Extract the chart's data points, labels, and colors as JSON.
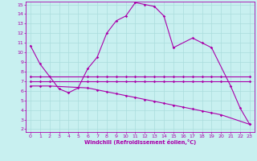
{
  "background_color": "#c8f0f0",
  "grid_color": "#aadddd",
  "line_color": "#aa00aa",
  "xlabel": "Windchill (Refroidissement éolien,°C)",
  "xlim": [
    -0.5,
    23.5
  ],
  "ylim": [
    1.7,
    15.3
  ],
  "yticks": [
    2,
    3,
    4,
    5,
    6,
    7,
    8,
    9,
    10,
    11,
    12,
    13,
    14,
    15
  ],
  "xticks": [
    0,
    1,
    2,
    3,
    4,
    5,
    6,
    7,
    8,
    9,
    10,
    11,
    12,
    13,
    14,
    15,
    16,
    17,
    18,
    19,
    20,
    21,
    22,
    23
  ],
  "line1_x": [
    0,
    1,
    3,
    4,
    5,
    6,
    7,
    8,
    9,
    10,
    11,
    12,
    13,
    14,
    15,
    17,
    18,
    19,
    21,
    22,
    23
  ],
  "line1_y": [
    10.7,
    8.8,
    6.2,
    5.8,
    6.3,
    8.3,
    9.5,
    12.0,
    13.3,
    13.8,
    15.2,
    15.0,
    14.8,
    13.8,
    10.5,
    11.5,
    11.0,
    10.5,
    6.5,
    4.2,
    2.5
  ],
  "line2_x": [
    0,
    1,
    2,
    6,
    7,
    8,
    9,
    10,
    11,
    12,
    13,
    14,
    15,
    16,
    17,
    18,
    19,
    20,
    23
  ],
  "line2_y": [
    7.5,
    7.5,
    7.5,
    7.5,
    7.5,
    7.5,
    7.5,
    7.5,
    7.5,
    7.5,
    7.5,
    7.5,
    7.5,
    7.5,
    7.5,
    7.5,
    7.5,
    7.5,
    7.5
  ],
  "line3_x": [
    0,
    1,
    2,
    6,
    7,
    8,
    9,
    10,
    11,
    12,
    13,
    14,
    15,
    16,
    17,
    18,
    19,
    20,
    23
  ],
  "line3_y": [
    7.0,
    7.0,
    7.0,
    7.0,
    7.0,
    7.0,
    7.0,
    7.0,
    7.0,
    7.0,
    7.0,
    7.0,
    7.0,
    7.0,
    7.0,
    7.0,
    7.0,
    7.0,
    7.0
  ],
  "line4_x": [
    0,
    1,
    2,
    6,
    7,
    8,
    9,
    10,
    11,
    12,
    13,
    14,
    15,
    16,
    17,
    18,
    19,
    20,
    23
  ],
  "line4_y": [
    6.5,
    6.5,
    6.5,
    6.3,
    6.1,
    5.9,
    5.7,
    5.5,
    5.3,
    5.1,
    4.9,
    4.7,
    4.5,
    4.3,
    4.1,
    3.9,
    3.7,
    3.5,
    2.5
  ]
}
